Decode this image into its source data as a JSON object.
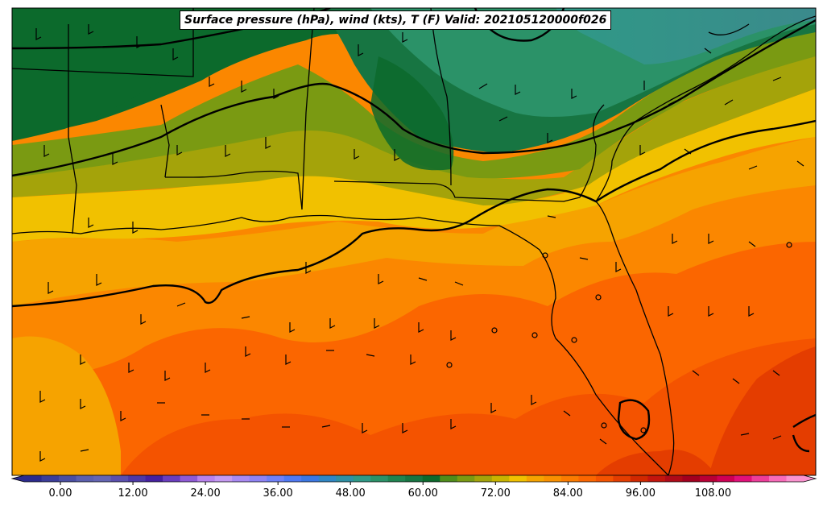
{
  "title": "Surface pressure (hPa), wind (kts), T (F) Valid: 202105120000f026",
  "colorbar": {
    "tick_labels": [
      "0.00",
      "12.00",
      "24.00",
      "36.00",
      "48.00",
      "60.00",
      "72.00",
      "84.00",
      "96.00",
      "108.00"
    ],
    "min": -6,
    "max": 123,
    "colors": [
      "#2b2a8e",
      "#3b3d9a",
      "#4a4ea3",
      "#5b5fae",
      "#6465b3",
      "#5a4fae",
      "#4d38a6",
      "#4520a0",
      "#6a3dbf",
      "#8f5ad6",
      "#b882ec",
      "#c59af2",
      "#a98af3",
      "#8f83f5",
      "#6f80f7",
      "#4f79f3",
      "#3a77e3",
      "#2f86c4",
      "#2f90a4",
      "#2f9986",
      "#2b9268",
      "#1f8450",
      "#177542",
      "#0c6a2c",
      "#4f8d1a",
      "#7a9a12",
      "#a4a30a",
      "#c8b400",
      "#f1c100",
      "#f6a300",
      "#f99000",
      "#fb7b00",
      "#fb6600",
      "#f45300",
      "#e43d00",
      "#d12800",
      "#c4150d",
      "#b00a18",
      "#a3001f",
      "#b90035",
      "#cf0055",
      "#e2107a",
      "#ee3d9a",
      "#f86bb9",
      "#fb93cf"
    ]
  },
  "map": {
    "fill_colors": {
      "cool_teal": "#3b8a8c",
      "dark_green": "#0c6a2c",
      "green": "#177542",
      "sea_green": "#2b9268",
      "olive": "#7a9a12",
      "yellow_olive": "#a4a30a",
      "yellow": "#f1c100",
      "light_orange": "#f6a300",
      "orange": "#fb8700",
      "deep_orange": "#fb6600",
      "red_orange": "#f45300",
      "red": "#e43d00"
    }
  }
}
